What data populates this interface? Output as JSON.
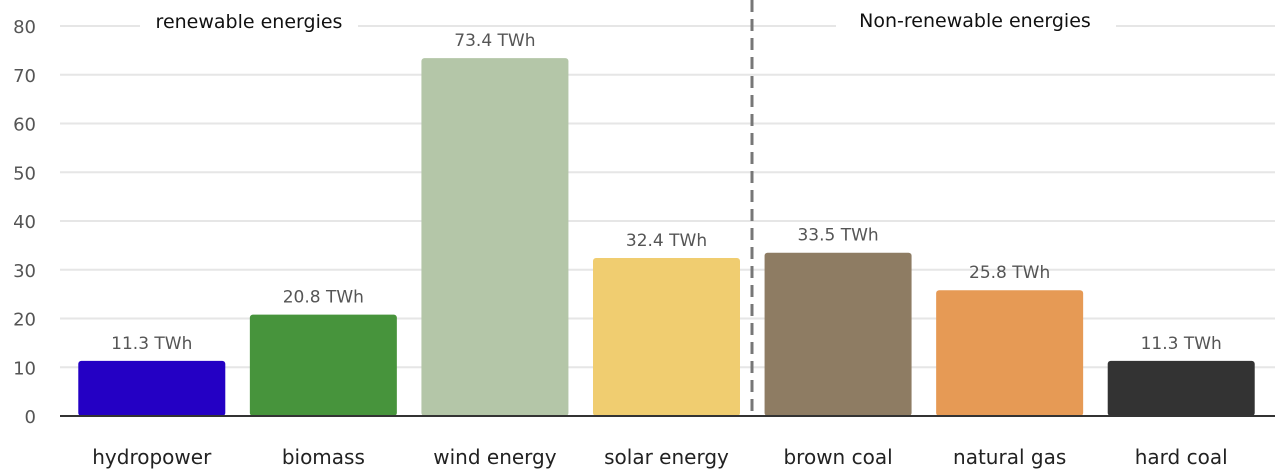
{
  "chart_data": {
    "type": "bar",
    "title": "",
    "xlabel": "",
    "ylabel": "",
    "ylim": [
      0,
      80
    ],
    "yticks": [
      0,
      10,
      20,
      30,
      40,
      50,
      60,
      70,
      80
    ],
    "grid": true,
    "legend": "none",
    "categories": [
      "hydropower",
      "biomass",
      "wind energy",
      "solar energy",
      "brown coal",
      "natural gas",
      "hard coal"
    ],
    "values": [
      11.3,
      20.8,
      73.4,
      32.4,
      33.5,
      25.8,
      11.3
    ],
    "data_labels": [
      "11.3 TWh",
      "20.8 TWh",
      "73.4 TWh",
      "32.4 TWh",
      "33.5 TWh",
      "25.8 TWh",
      "11.3 TWh"
    ],
    "colors": [
      "#2400c4",
      "#47943c",
      "#b4c6a8",
      "#f0cd70",
      "#8e7c63",
      "#e69a55",
      "#333333"
    ],
    "annotations": {
      "left_group": "renewable energies",
      "right_group": "Non-renewable energies",
      "divider": "dashed vertical line between solar energy and brown coal"
    }
  }
}
